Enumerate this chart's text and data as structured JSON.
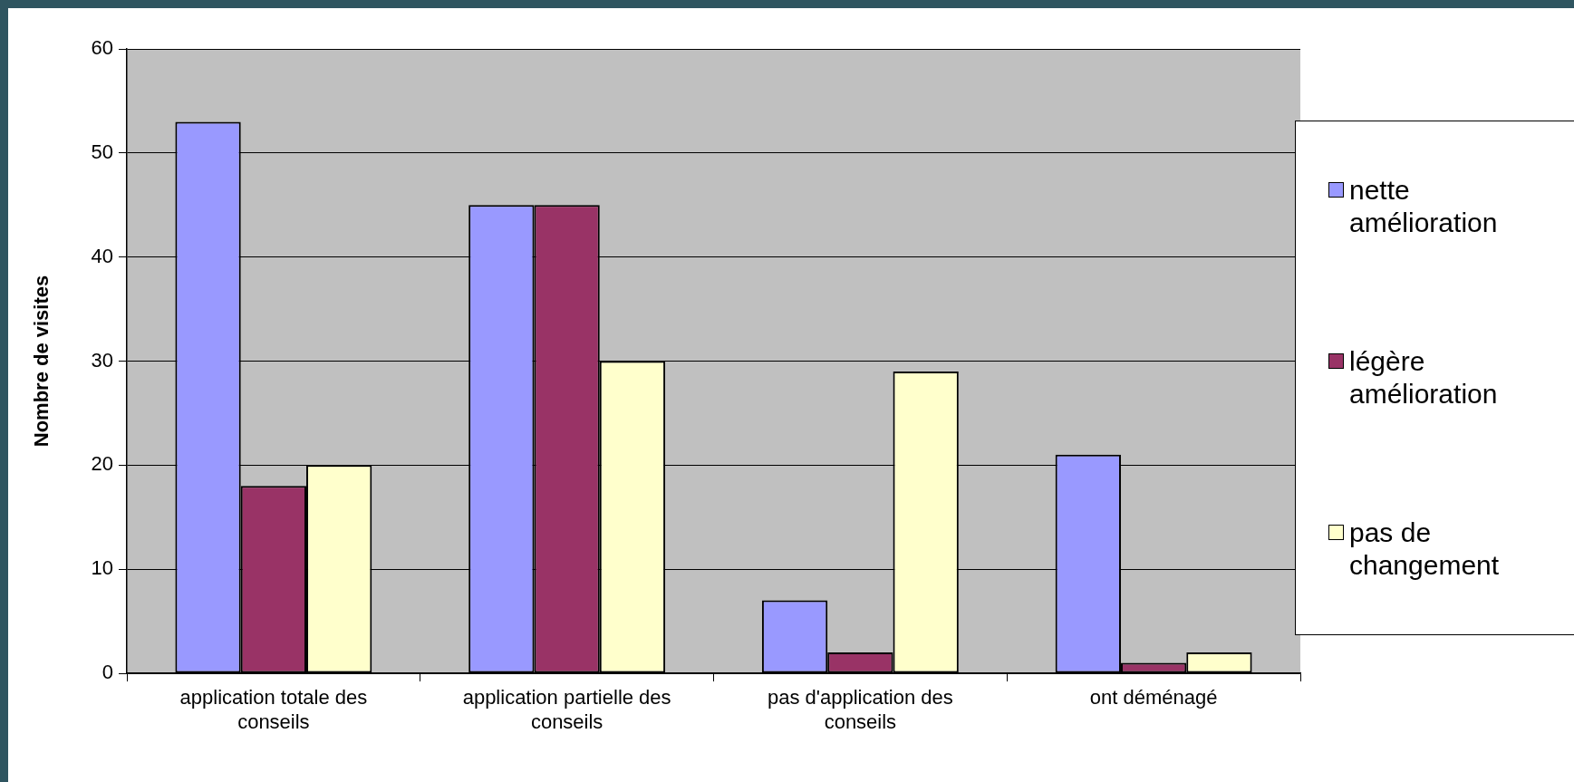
{
  "chart_data": {
    "type": "bar",
    "ylabel": "Nombre de visites",
    "categories": [
      "application totale des conseils",
      "application partielle des conseils",
      "pas d'application des conseils",
      "ont déménagé"
    ],
    "series": [
      {
        "name": "nette amélioration",
        "color": "#9999ff",
        "values": [
          53,
          45,
          7,
          21
        ]
      },
      {
        "name": "légère amélioration",
        "color": "#993366",
        "values": [
          18,
          45,
          2,
          1
        ]
      },
      {
        "name": "pas de changement",
        "color": "#ffffcc",
        "values": [
          20,
          30,
          29,
          2
        ]
      }
    ],
    "ylim": [
      0,
      60
    ],
    "yticks": [
      0,
      10,
      20,
      30,
      40,
      50,
      60
    ],
    "grid": "y",
    "legend": "right"
  }
}
